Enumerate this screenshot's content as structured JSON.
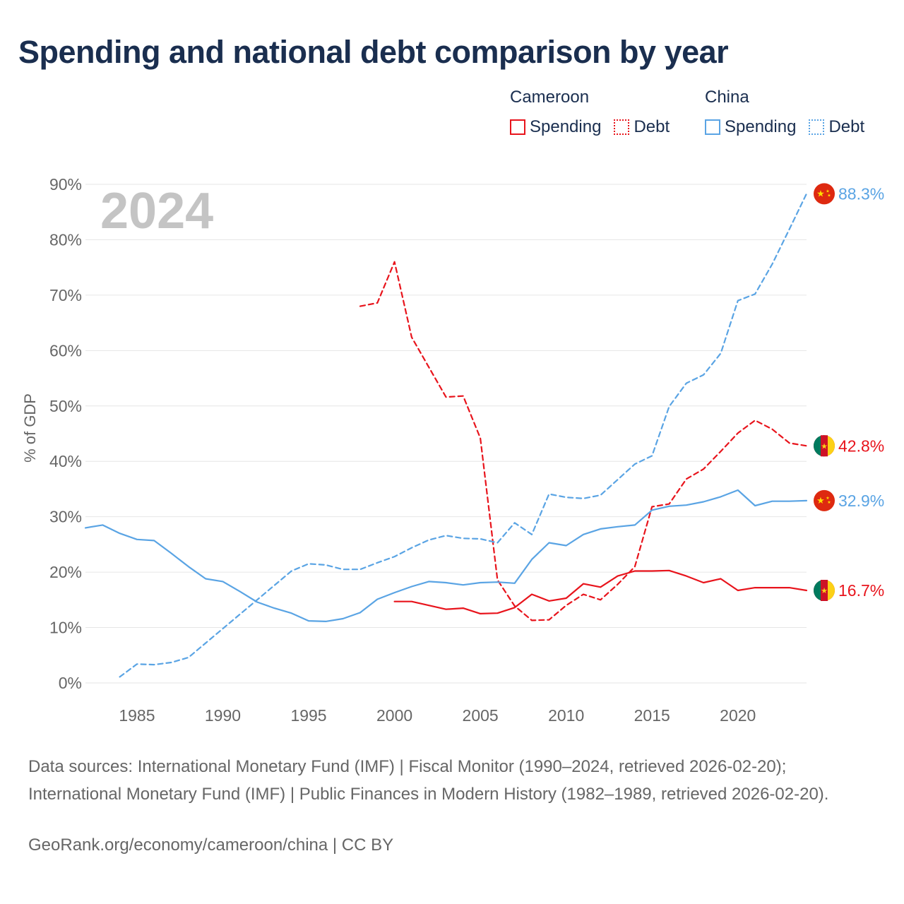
{
  "title": "Spending and national debt comparison by year",
  "legend": {
    "groups": [
      {
        "country": "Cameroon",
        "color": "#e8141c",
        "items": [
          {
            "label": "Spending",
            "style": "solid"
          },
          {
            "label": "Debt",
            "style": "dotted"
          }
        ]
      },
      {
        "country": "China",
        "color": "#5aa4e4",
        "items": [
          {
            "label": "Spending",
            "style": "solid"
          },
          {
            "label": "Debt",
            "style": "dotted"
          }
        ]
      }
    ]
  },
  "chart_data": {
    "type": "line",
    "year_label": "2024",
    "ylabel": "% of GDP",
    "xlim": [
      1982,
      2024
    ],
    "ylim": [
      0,
      90
    ],
    "x_ticks": [
      1985,
      1990,
      1995,
      2000,
      2005,
      2010,
      2015,
      2020
    ],
    "y_ticks": [
      0,
      10,
      20,
      30,
      40,
      50,
      60,
      70,
      80,
      90
    ],
    "y_tick_labels": [
      "0%",
      "10%",
      "20%",
      "30%",
      "40%",
      "50%",
      "60%",
      "70%",
      "80%",
      "90%"
    ],
    "series": [
      {
        "name": "Cameroon Spending",
        "country": "Cameroon",
        "color": "#e8141c",
        "dash": false,
        "end_label": "16.7%",
        "flag": "cameroon",
        "x": [
          2000,
          2001,
          2002,
          2003,
          2004,
          2005,
          2006,
          2007,
          2008,
          2009,
          2010,
          2011,
          2012,
          2013,
          2014,
          2015,
          2016,
          2017,
          2018,
          2019,
          2020,
          2021,
          2022,
          2023,
          2024
        ],
        "y": [
          14.7,
          14.7,
          14.0,
          13.3,
          13.5,
          12.5,
          12.6,
          13.6,
          16.0,
          14.8,
          15.3,
          17.9,
          17.3,
          19.3,
          20.2,
          20.2,
          20.3,
          19.3,
          18.1,
          18.8,
          16.7,
          17.2,
          17.2,
          17.2,
          16.7
        ]
      },
      {
        "name": "Cameroon Debt",
        "country": "Cameroon",
        "color": "#e8141c",
        "dash": true,
        "end_label": "42.8%",
        "flag": "cameroon",
        "x": [
          1998,
          1999,
          2000,
          2001,
          2002,
          2003,
          2004,
          2005,
          2006,
          2007,
          2008,
          2009,
          2010,
          2011,
          2012,
          2013,
          2014,
          2015,
          2016,
          2017,
          2018,
          2019,
          2020,
          2021,
          2022,
          2023,
          2024
        ],
        "y": [
          68.0,
          68.6,
          76.0,
          62.4,
          57.0,
          51.6,
          51.8,
          44.2,
          18.6,
          13.9,
          11.3,
          11.4,
          14.0,
          16.0,
          15.0,
          17.8,
          21.0,
          31.8,
          32.3,
          36.8,
          38.6,
          41.8,
          45.1,
          47.4,
          45.8,
          43.3,
          42.8
        ]
      },
      {
        "name": "China Spending",
        "country": "China",
        "color": "#5aa4e4",
        "dash": false,
        "end_label": "32.9%",
        "flag": "china",
        "x": [
          1982,
          1983,
          1984,
          1985,
          1986,
          1987,
          1988,
          1989,
          1990,
          1991,
          1992,
          1993,
          1994,
          1995,
          1996,
          1997,
          1998,
          1999,
          2000,
          2001,
          2002,
          2003,
          2004,
          2005,
          2006,
          2007,
          2008,
          2009,
          2010,
          2011,
          2012,
          2013,
          2014,
          2015,
          2016,
          2017,
          2018,
          2019,
          2020,
          2021,
          2022,
          2023,
          2024
        ],
        "y": [
          28.0,
          28.5,
          27.0,
          25.9,
          25.7,
          23.4,
          21.0,
          18.8,
          18.3,
          16.5,
          14.6,
          13.5,
          12.6,
          11.2,
          11.1,
          11.6,
          12.7,
          15.1,
          16.3,
          17.4,
          18.3,
          18.1,
          17.7,
          18.1,
          18.2,
          18.0,
          22.3,
          25.3,
          24.8,
          26.8,
          27.8,
          28.2,
          28.5,
          31.2,
          31.9,
          32.1,
          32.7,
          33.6,
          34.8,
          32.0,
          32.8,
          32.8,
          32.9
        ]
      },
      {
        "name": "China Debt",
        "country": "China",
        "color": "#5aa4e4",
        "dash": true,
        "end_label": "88.3%",
        "flag": "china",
        "x": [
          1984,
          1985,
          1986,
          1987,
          1988,
          1989,
          1990,
          1991,
          1992,
          1993,
          1994,
          1995,
          1996,
          1997,
          1998,
          1999,
          2000,
          2001,
          2002,
          2003,
          2004,
          2005,
          2006,
          2007,
          2008,
          2009,
          2010,
          2011,
          2012,
          2013,
          2014,
          2015,
          2016,
          2017,
          2018,
          2019,
          2020,
          2021,
          2022,
          2023,
          2024
        ],
        "y": [
          1.1,
          3.4,
          3.3,
          3.7,
          4.6,
          7.2,
          9.8,
          12.4,
          15.0,
          17.6,
          20.2,
          21.5,
          21.3,
          20.5,
          20.5,
          21.7,
          22.8,
          24.4,
          25.8,
          26.6,
          26.1,
          26.0,
          25.3,
          28.9,
          26.8,
          34.1,
          33.5,
          33.3,
          33.9,
          36.7,
          39.5,
          41.0,
          49.9,
          54.1,
          55.6,
          59.5,
          69.0,
          70.2,
          75.6,
          81.9,
          88.3
        ]
      }
    ]
  },
  "footer": {
    "sources": "Data sources: International Monetary Fund (IMF) | Fiscal Monitor (1990–2024, retrieved 2026-02-20); International Monetary Fund (IMF) | Public Finances in Modern History (1982–1989, retrieved 2026-02-20).",
    "link": "GeoRank.org/economy/cameroon/china | CC BY"
  }
}
